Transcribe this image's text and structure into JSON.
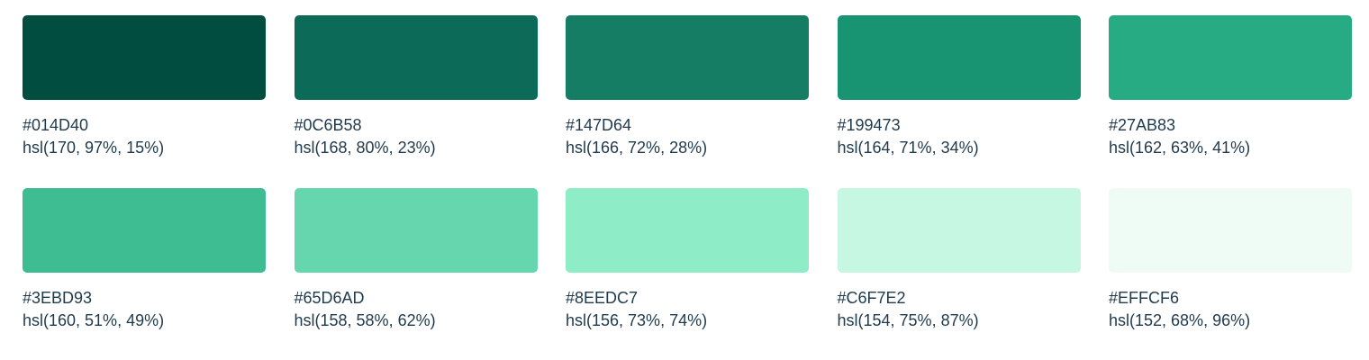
{
  "swatches": [
    {
      "hex": "#014D40",
      "hsl": "hsl(170, 97%, 15%)",
      "color": "#014D40"
    },
    {
      "hex": "#0C6B58",
      "hsl": "hsl(168, 80%, 23%)",
      "color": "#0C6B58"
    },
    {
      "hex": "#147D64",
      "hsl": "hsl(166, 72%, 28%)",
      "color": "#147D64"
    },
    {
      "hex": "#199473",
      "hsl": "hsl(164, 71%, 34%)",
      "color": "#199473"
    },
    {
      "hex": "#27AB83",
      "hsl": "hsl(162, 63%, 41%)",
      "color": "#27AB83"
    },
    {
      "hex": "#3EBD93",
      "hsl": "hsl(160, 51%, 49%)",
      "color": "#3EBD93"
    },
    {
      "hex": "#65D6AD",
      "hsl": "hsl(158, 58%, 62%)",
      "color": "#65D6AD"
    },
    {
      "hex": "#8EEDC7",
      "hsl": "hsl(156, 73%, 74%)",
      "color": "#8EEDC7"
    },
    {
      "hex": "#C6F7E2",
      "hsl": "hsl(154, 75%, 87%)",
      "color": "#C6F7E2"
    },
    {
      "hex": "#EFFCF6",
      "hsl": "hsl(152, 68%, 96%)",
      "color": "#EFFCF6"
    }
  ],
  "text_color": "#1f3a4d"
}
